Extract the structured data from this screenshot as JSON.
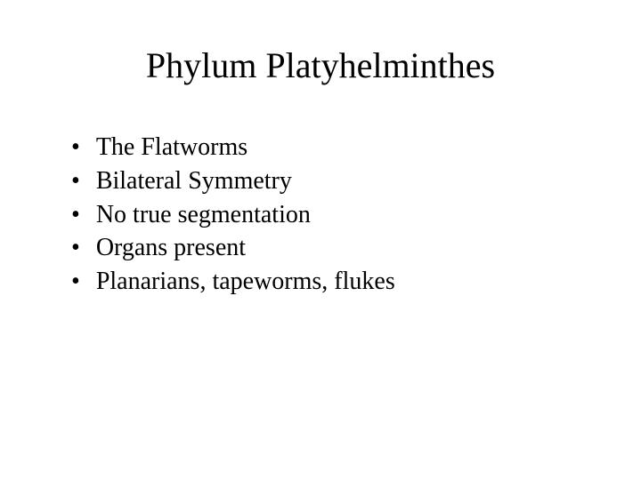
{
  "slide": {
    "title": "Phylum Platyhelminthes",
    "bullets": [
      "The Flatworms",
      "Bilateral Symmetry",
      "No true segmentation",
      "Organs present",
      "Planarians, tapeworms, flukes"
    ]
  },
  "style": {
    "background_color": "#ffffff",
    "text_color": "#000000",
    "title_fontsize": 40,
    "bullet_fontsize": 28,
    "font_family": "Times New Roman"
  }
}
